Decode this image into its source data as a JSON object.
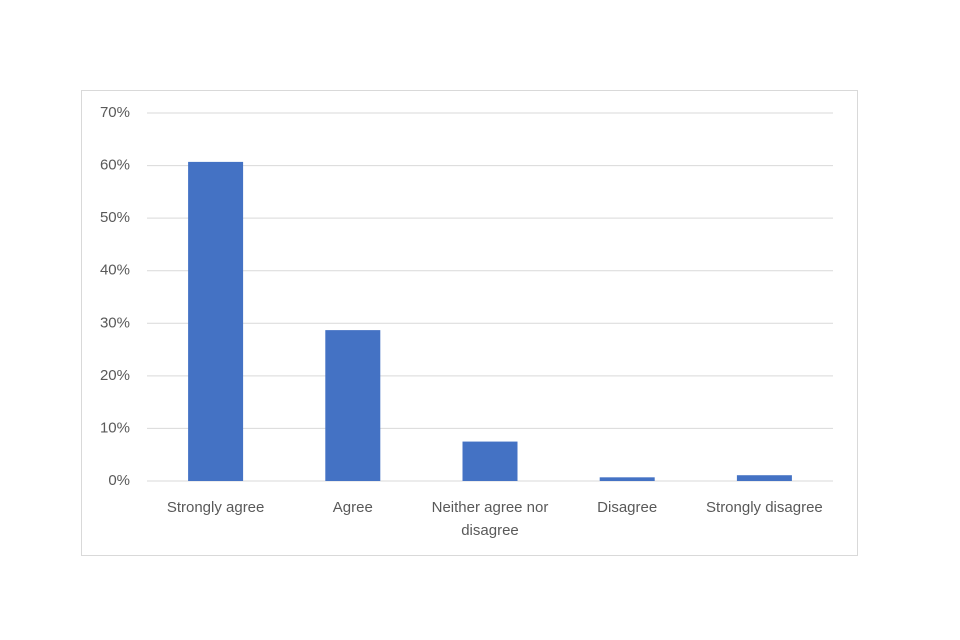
{
  "chart_data": {
    "type": "bar",
    "categories": [
      "Strongly agree",
      "Agree",
      "Neither agree nor disagree",
      "Disagree",
      "Strongly disagree"
    ],
    "values": [
      60.7,
      28.7,
      7.5,
      0.7,
      1.1
    ],
    "color": "#4472c4",
    "ylim": [
      0,
      70
    ],
    "yticks": [
      {
        "value": 0,
        "label": "0%"
      },
      {
        "value": 10,
        "label": "10%"
      },
      {
        "value": 20,
        "label": "20%"
      },
      {
        "value": 30,
        "label": "30%"
      },
      {
        "value": 40,
        "label": "40%"
      },
      {
        "value": 50,
        "label": "50%"
      },
      {
        "value": 60,
        "label": "60%"
      },
      {
        "value": 70,
        "label": "70%"
      }
    ],
    "grid": true
  }
}
